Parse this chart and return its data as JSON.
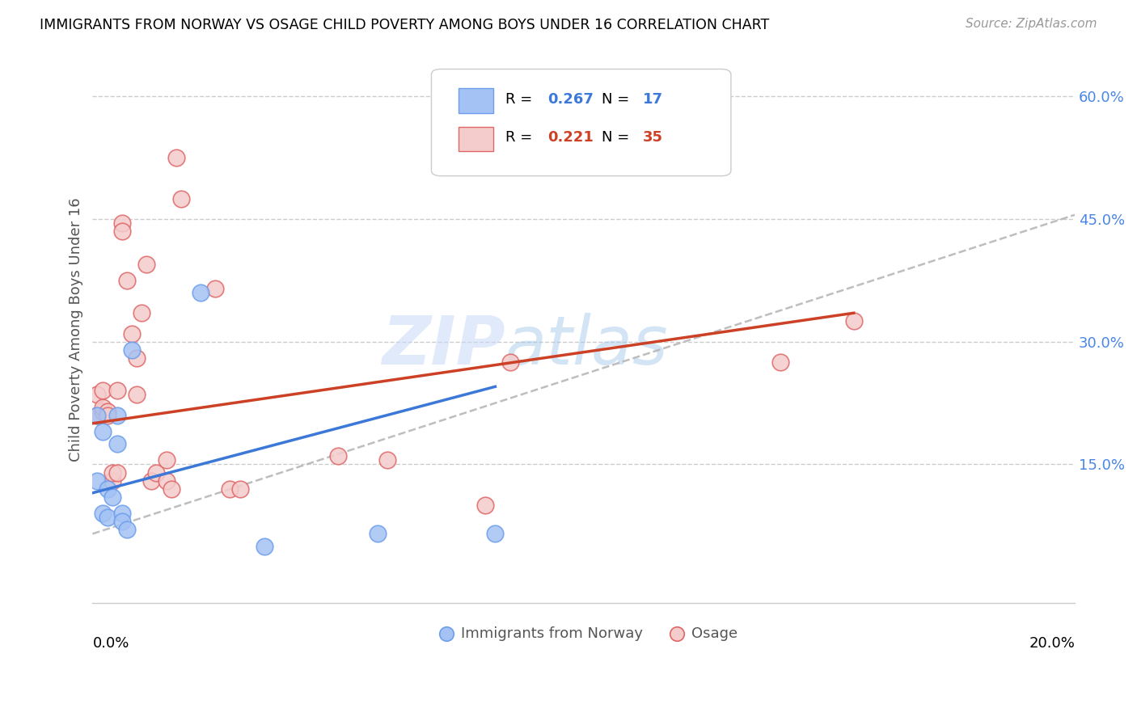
{
  "title": "IMMIGRANTS FROM NORWAY VS OSAGE CHILD POVERTY AMONG BOYS UNDER 16 CORRELATION CHART",
  "source": "Source: ZipAtlas.com",
  "ylabel": "Child Poverty Among Boys Under 16",
  "xlim": [
    0,
    0.2
  ],
  "ylim": [
    -0.02,
    0.65
  ],
  "y_ticks": [
    0.0,
    0.15,
    0.3,
    0.45,
    0.6
  ],
  "y_tick_labels": [
    "",
    "15.0%",
    "30.0%",
    "45.0%",
    "60.0%"
  ],
  "legend1_R": "0.267",
  "legend1_N": "17",
  "legend2_R": "0.221",
  "legend2_N": "35",
  "legend1_label": "Immigrants from Norway",
  "legend2_label": "Osage",
  "color_blue_fill": "#a4c2f4",
  "color_pink_fill": "#f4cccc",
  "color_blue_edge": "#6d9eeb",
  "color_pink_edge": "#e06666",
  "color_blue_line": "#3c78d8",
  "color_pink_line": "#cc4125",
  "color_dashed": "#b7b7b7",
  "watermark_top": "ZIP",
  "watermark_bot": "atlas",
  "blue_scatter_x": [
    0.001,
    0.001,
    0.002,
    0.002,
    0.003,
    0.003,
    0.004,
    0.005,
    0.005,
    0.006,
    0.006,
    0.007,
    0.008,
    0.022,
    0.035,
    0.058,
    0.082
  ],
  "blue_scatter_y": [
    0.13,
    0.21,
    0.19,
    0.09,
    0.12,
    0.085,
    0.11,
    0.175,
    0.21,
    0.09,
    0.08,
    0.07,
    0.29,
    0.36,
    0.05,
    0.065,
    0.065
  ],
  "pink_scatter_x": [
    0.001,
    0.001,
    0.002,
    0.002,
    0.002,
    0.003,
    0.003,
    0.004,
    0.004,
    0.005,
    0.005,
    0.006,
    0.006,
    0.007,
    0.008,
    0.009,
    0.009,
    0.01,
    0.011,
    0.012,
    0.013,
    0.015,
    0.015,
    0.016,
    0.017,
    0.018,
    0.025,
    0.028,
    0.03,
    0.05,
    0.06,
    0.08,
    0.085,
    0.14,
    0.155
  ],
  "pink_scatter_y": [
    0.21,
    0.235,
    0.24,
    0.215,
    0.22,
    0.215,
    0.21,
    0.13,
    0.14,
    0.24,
    0.14,
    0.445,
    0.435,
    0.375,
    0.31,
    0.28,
    0.235,
    0.335,
    0.395,
    0.13,
    0.14,
    0.13,
    0.155,
    0.12,
    0.525,
    0.475,
    0.365,
    0.12,
    0.12,
    0.16,
    0.155,
    0.1,
    0.275,
    0.275,
    0.325
  ],
  "blue_line_x": [
    0.0,
    0.082
  ],
  "blue_line_y": [
    0.115,
    0.245
  ],
  "pink_line_x": [
    0.0,
    0.155
  ],
  "pink_line_y": [
    0.2,
    0.335
  ],
  "dashed_line_x": [
    0.0,
    0.2
  ],
  "dashed_line_y": [
    0.065,
    0.455
  ]
}
